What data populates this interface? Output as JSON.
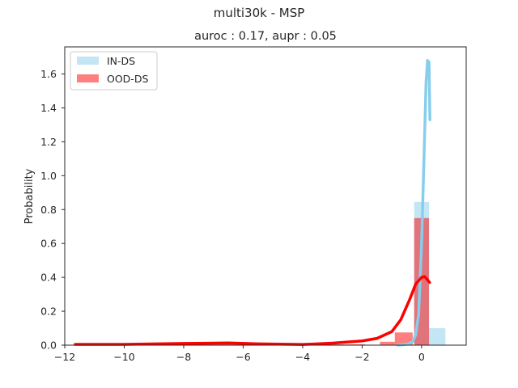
{
  "chart_data": {
    "type": "bar",
    "title": "multi30k - MSP",
    "subtitle": "auroc : 0.17, aupr : 0.05",
    "xlabel": "",
    "ylabel": "Probability",
    "xlim": [
      -12.0,
      1.5
    ],
    "ylim": [
      0,
      1.76
    ],
    "xticks": [
      -12,
      -10,
      -8,
      -6,
      -4,
      -2,
      0
    ],
    "xtick_labels": [
      "−12",
      "−10",
      "−8",
      "−6",
      "−4",
      "−2",
      "0"
    ],
    "yticks": [
      0.0,
      0.2,
      0.4,
      0.6,
      0.8,
      1.0,
      1.2,
      1.4,
      1.6
    ],
    "ytick_labels": [
      "0.0",
      "0.2",
      "0.4",
      "0.6",
      "0.8",
      "1.0",
      "1.2",
      "1.4",
      "1.6"
    ],
    "grid": false,
    "legend_position": "top-left",
    "series": [
      {
        "name": "IN-DS",
        "kind": "histogram",
        "color": "#87ceeb",
        "opacity": 0.5,
        "bins": [
          {
            "x0": -0.25,
            "x1": 0.25,
            "value": 0.845
          },
          {
            "x0": 0.25,
            "x1": 0.8,
            "value": 0.1
          }
        ]
      },
      {
        "name": "OOD-DS",
        "kind": "histogram",
        "color": "#ff0000",
        "opacity": 0.5,
        "bins": [
          {
            "x0": -11.65,
            "x1": -1.9,
            "value": 0.005
          },
          {
            "x0": -1.4,
            "x1": -0.9,
            "value": 0.02
          },
          {
            "x0": -0.9,
            "x1": -0.3,
            "value": 0.075
          },
          {
            "x0": -0.25,
            "x1": 0.25,
            "value": 0.75
          }
        ]
      },
      {
        "name": "IN-DS",
        "kind": "kde",
        "color": "#87ceeb",
        "points": [
          [
            -0.8,
            0.0
          ],
          [
            -0.5,
            0.005
          ],
          [
            -0.3,
            0.02
          ],
          [
            -0.2,
            0.06
          ],
          [
            -0.1,
            0.18
          ],
          [
            0.0,
            0.6
          ],
          [
            0.08,
            1.1
          ],
          [
            0.15,
            1.55
          ],
          [
            0.2,
            1.68
          ],
          [
            0.25,
            1.67
          ],
          [
            0.28,
            1.33
          ]
        ]
      },
      {
        "name": "OOD-DS",
        "kind": "kde",
        "color": "#ff0000",
        "points": [
          [
            -11.65,
            0.005
          ],
          [
            -10.0,
            0.005
          ],
          [
            -8.0,
            0.01
          ],
          [
            -6.5,
            0.013
          ],
          [
            -5.5,
            0.008
          ],
          [
            -4.0,
            0.004
          ],
          [
            -3.0,
            0.012
          ],
          [
            -2.0,
            0.025
          ],
          [
            -1.5,
            0.04
          ],
          [
            -1.0,
            0.08
          ],
          [
            -0.7,
            0.15
          ],
          [
            -0.4,
            0.27
          ],
          [
            -0.2,
            0.36
          ],
          [
            0.0,
            0.4
          ],
          [
            0.1,
            0.405
          ],
          [
            0.2,
            0.385
          ],
          [
            0.27,
            0.37
          ]
        ]
      }
    ]
  }
}
